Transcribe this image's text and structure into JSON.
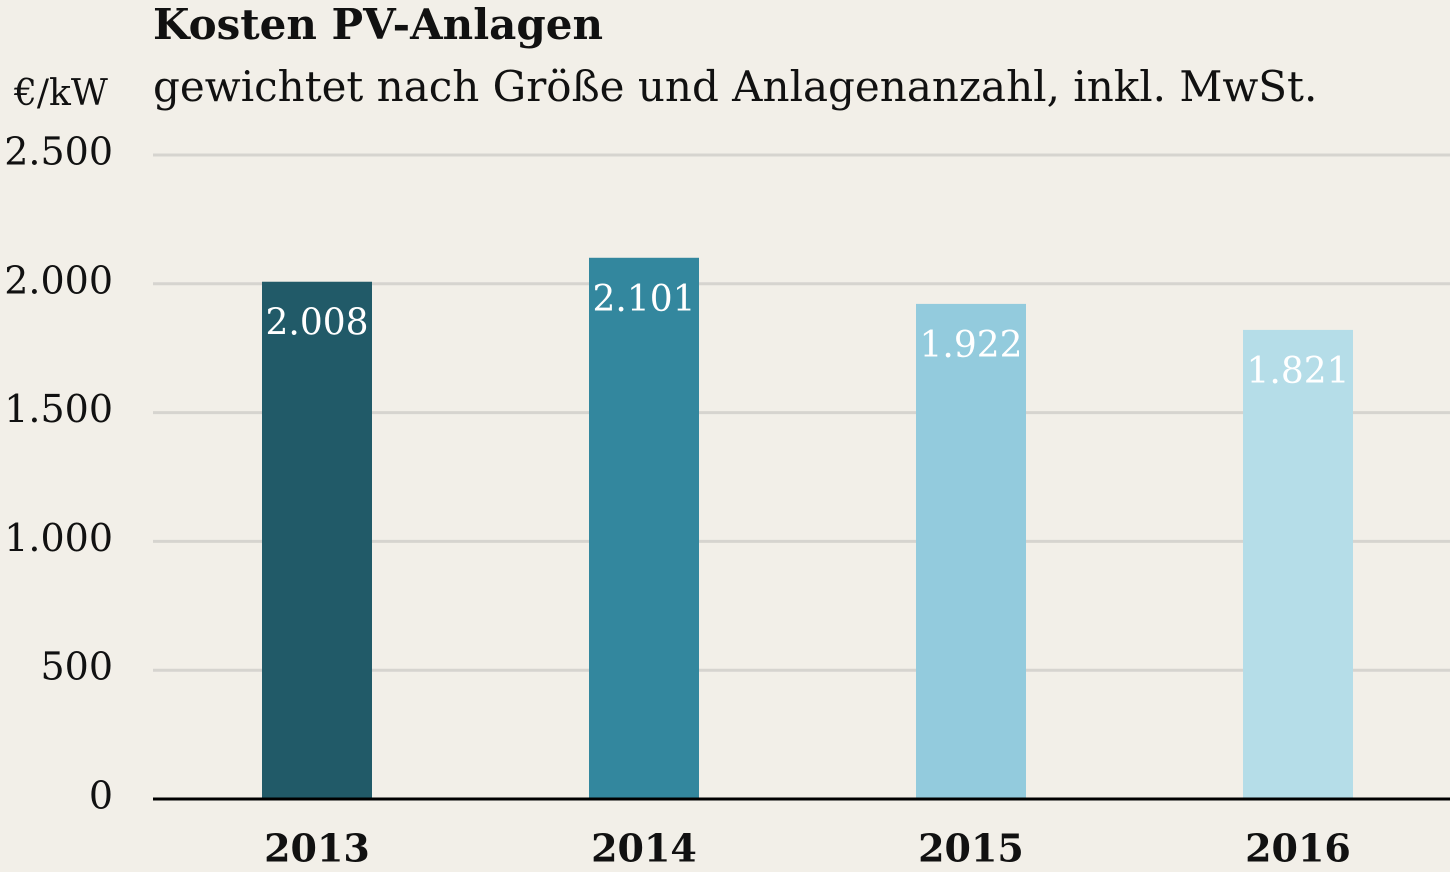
{
  "chart_data": {
    "type": "bar",
    "title": "Kosten PV-Anlagen",
    "subtitle": "gewichtet nach Größe und Anlagenanzahl, inkl. MwSt.",
    "y_label": "€/kW",
    "categories": [
      "2013",
      "2014",
      "2015",
      "2016"
    ],
    "values": [
      2008,
      2101,
      1922,
      1821
    ],
    "value_labels": [
      "2.008",
      "2.101",
      "1.922",
      "1.821"
    ],
    "colors": [
      "#215a68",
      "#33879e",
      "#93cbdd",
      "#b5dde8"
    ],
    "ylim": [
      0,
      2500
    ],
    "yticks": [
      0,
      500,
      {
        "value": 1000,
        "label": "1.000"
      },
      {
        "value": 1500,
        "label": "1.500"
      },
      {
        "value": 2000,
        "label": "2.000"
      },
      {
        "value": 2500,
        "label": "2.500"
      }
    ],
    "grid": true
  }
}
